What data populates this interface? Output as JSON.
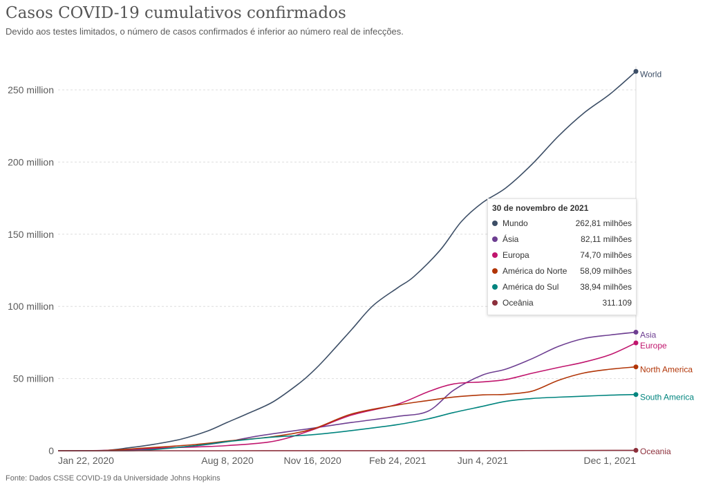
{
  "title": "Casos COVID-19 cumulativos confirmados",
  "subtitle": "Devido aos testes limitados, o número de casos confirmados é inferior ao número real de infecções.",
  "source": "Fonte: Dados CSSE COVID-19 da Universidade Johns Hopkins",
  "tooltip": {
    "date": "30 de novembro de 2021",
    "rows": [
      {
        "name": "Mundo",
        "value": "262,81 milhões",
        "color": "#3c4e66"
      },
      {
        "name": "Ásia",
        "value": "82,11 milhões",
        "color": "#6d3e91"
      },
      {
        "name": "Europa",
        "value": "74,70 milhões",
        "color": "#c0156d"
      },
      {
        "name": "América do Norte",
        "value": "58,09 milhões",
        "color": "#b13507"
      },
      {
        "name": "América do Sul",
        "value": "38,94 milhões",
        "color": "#00847e"
      },
      {
        "name": "Oceânia",
        "value": "311.109",
        "color": "#8c2f3b"
      }
    ]
  },
  "chart_data": {
    "type": "line",
    "x_ticks": [
      {
        "label": "Jan 22, 2020",
        "date": "2020-01-22"
      },
      {
        "label": "Aug 8, 2020",
        "date": "2020-08-08"
      },
      {
        "label": "Nov 16, 2020",
        "date": "2020-11-16"
      },
      {
        "label": "Feb 24, 2021",
        "date": "2021-02-24"
      },
      {
        "label": "Jun 4, 2021",
        "date": "2021-06-04"
      },
      {
        "label": "Dec 1, 2021",
        "date": "2021-12-01"
      }
    ],
    "y_ticks": [
      {
        "label": "0",
        "value": 0
      },
      {
        "label": "50 million",
        "value": 50000000
      },
      {
        "label": "100 million",
        "value": 100000000
      },
      {
        "label": "150 million",
        "value": 150000000
      },
      {
        "label": "200 million",
        "value": 200000000
      },
      {
        "label": "250 million",
        "value": 250000000
      }
    ],
    "x_range": [
      "2020-01-22",
      "2021-12-01"
    ],
    "y_range": [
      0,
      250000000
    ],
    "grid": true,
    "series": [
      {
        "name": "World",
        "color": "#3c4e66",
        "points": [
          [
            "2020-01-22",
            0
          ],
          [
            "2020-03-15",
            200000
          ],
          [
            "2020-04-15",
            2100000
          ],
          [
            "2020-05-15",
            4600000
          ],
          [
            "2020-06-15",
            8100000
          ],
          [
            "2020-07-15",
            13500000
          ],
          [
            "2020-08-08",
            19700000
          ],
          [
            "2020-09-01",
            25800000
          ],
          [
            "2020-10-01",
            34000000
          ],
          [
            "2020-11-01",
            47000000
          ],
          [
            "2020-11-16",
            54700000
          ],
          [
            "2020-12-01",
            63700000
          ],
          [
            "2021-01-01",
            84000000
          ],
          [
            "2021-01-26",
            100500000
          ],
          [
            "2021-02-24",
            112900000
          ],
          [
            "2021-03-15",
            120600000
          ],
          [
            "2021-04-15",
            139000000
          ],
          [
            "2021-05-10",
            158800000
          ],
          [
            "2021-06-04",
            172000000
          ],
          [
            "2021-07-01",
            182000000
          ],
          [
            "2021-08-01",
            198500000
          ],
          [
            "2021-09-01",
            218000000
          ],
          [
            "2021-10-01",
            234000000
          ],
          [
            "2021-11-01",
            247300000
          ],
          [
            "2021-12-01",
            262810000
          ]
        ]
      },
      {
        "name": "Asia",
        "color": "#6d3e91",
        "points": [
          [
            "2020-01-22",
            0
          ],
          [
            "2020-03-15",
            100000
          ],
          [
            "2020-05-01",
            800000
          ],
          [
            "2020-07-01",
            3400000
          ],
          [
            "2020-08-08",
            6300000
          ],
          [
            "2020-09-15",
            10400000
          ],
          [
            "2020-11-16",
            15600000
          ],
          [
            "2021-01-01",
            19600000
          ],
          [
            "2021-02-24",
            23800000
          ],
          [
            "2021-04-01",
            27500000
          ],
          [
            "2021-05-01",
            42000000
          ],
          [
            "2021-06-04",
            52500000
          ],
          [
            "2021-07-01",
            56500000
          ],
          [
            "2021-08-01",
            63800000
          ],
          [
            "2021-09-01",
            72300000
          ],
          [
            "2021-10-01",
            77800000
          ],
          [
            "2021-11-01",
            80200000
          ],
          [
            "2021-12-01",
            82110000
          ]
        ]
      },
      {
        "name": "Europe",
        "color": "#c0156d",
        "points": [
          [
            "2020-01-22",
            0
          ],
          [
            "2020-03-15",
            200000
          ],
          [
            "2020-05-01",
            1500000
          ],
          [
            "2020-07-01",
            2600000
          ],
          [
            "2020-08-08",
            3600000
          ],
          [
            "2020-10-01",
            6500000
          ],
          [
            "2020-11-16",
            14500000
          ],
          [
            "2021-01-01",
            24700000
          ],
          [
            "2021-02-24",
            32300000
          ],
          [
            "2021-04-01",
            40900000
          ],
          [
            "2021-05-01",
            46300000
          ],
          [
            "2021-06-04",
            47700000
          ],
          [
            "2021-07-01",
            49300000
          ],
          [
            "2021-08-01",
            53700000
          ],
          [
            "2021-09-01",
            57700000
          ],
          [
            "2021-10-01",
            61400000
          ],
          [
            "2021-11-01",
            66600000
          ],
          [
            "2021-12-01",
            74700000
          ]
        ]
      },
      {
        "name": "North America",
        "color": "#b13507",
        "points": [
          [
            "2020-01-22",
            0
          ],
          [
            "2020-03-15",
            100000
          ],
          [
            "2020-05-01",
            1800000
          ],
          [
            "2020-07-01",
            4300000
          ],
          [
            "2020-08-08",
            6700000
          ],
          [
            "2020-10-01",
            9800000
          ],
          [
            "2020-11-16",
            15000000
          ],
          [
            "2021-01-01",
            25500000
          ],
          [
            "2021-02-24",
            31700000
          ],
          [
            "2021-04-01",
            34800000
          ],
          [
            "2021-05-01",
            37200000
          ],
          [
            "2021-06-04",
            38700000
          ],
          [
            "2021-07-01",
            39100000
          ],
          [
            "2021-08-01",
            41300000
          ],
          [
            "2021-09-01",
            48800000
          ],
          [
            "2021-10-01",
            53900000
          ],
          [
            "2021-11-01",
            56500000
          ],
          [
            "2021-12-01",
            58090000
          ]
        ]
      },
      {
        "name": "South America",
        "color": "#00847e",
        "points": [
          [
            "2020-01-22",
            0
          ],
          [
            "2020-03-15",
            10000
          ],
          [
            "2020-05-01",
            300000
          ],
          [
            "2020-07-01",
            3500000
          ],
          [
            "2020-08-08",
            6300000
          ],
          [
            "2020-10-01",
            9500000
          ],
          [
            "2020-11-16",
            11100000
          ],
          [
            "2021-01-01",
            14000000
          ],
          [
            "2021-02-24",
            18100000
          ],
          [
            "2021-04-01",
            22100000
          ],
          [
            "2021-05-01",
            26500000
          ],
          [
            "2021-06-04",
            30800000
          ],
          [
            "2021-07-01",
            34200000
          ],
          [
            "2021-08-01",
            36200000
          ],
          [
            "2021-09-01",
            37100000
          ],
          [
            "2021-10-01",
            37800000
          ],
          [
            "2021-11-01",
            38500000
          ],
          [
            "2021-12-01",
            38940000
          ]
        ]
      },
      {
        "name": "Oceania",
        "color": "#8c2f3b",
        "points": [
          [
            "2020-01-22",
            0
          ],
          [
            "2020-08-08",
            20000
          ],
          [
            "2021-06-04",
            70000
          ],
          [
            "2021-12-01",
            311109
          ]
        ]
      }
    ]
  }
}
